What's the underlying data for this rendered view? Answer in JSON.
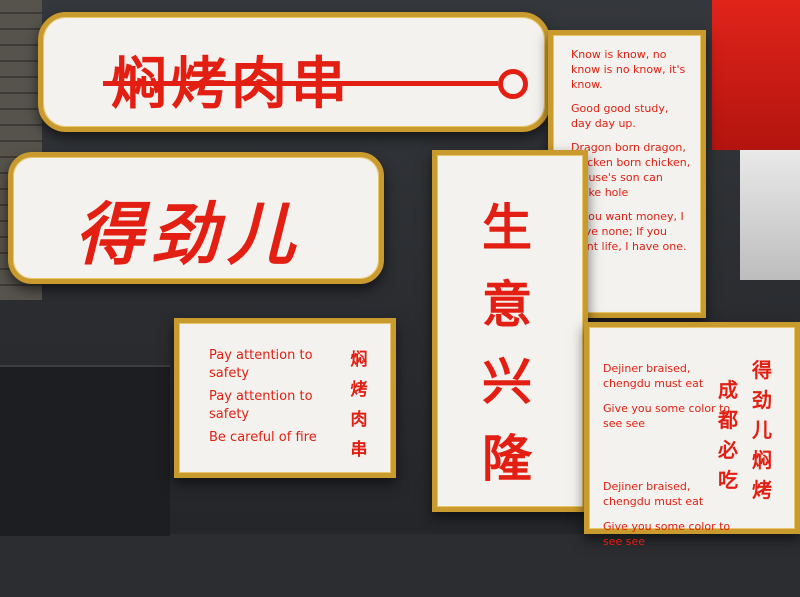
{
  "signs": {
    "top": {
      "text": "焖烤肉串"
    },
    "dejin": {
      "text": "得劲儿"
    },
    "proverbs": {
      "lines": [
        "Know is know, no know is no know, it's know.",
        "Good good study, day day up.",
        "Dragon born dragon, chicken born chicken, mouse's son can make hole",
        "If you want money, I have none; If you want life, I have one."
      ]
    },
    "business": {
      "text": "生意兴隆"
    },
    "safety": {
      "lines": [
        "Pay attention to safety",
        "Pay attention to safety",
        "Be careful of fire"
      ],
      "vertical": "焖烤肉串"
    },
    "chengdu": {
      "group1": [
        "Dejiner braised, chengdu must eat",
        "Give you some color to see see"
      ],
      "group2": [
        "Dejiner braised, chengdu must eat",
        "Give you some color to see see"
      ],
      "vertical1": "成都必吃",
      "vertical2": "得劲儿焖烤"
    }
  },
  "colors": {
    "sign_red": "#e21f12",
    "frame_gold": "#c99a2e",
    "sign_white": "#f4f2ee",
    "wall": "#2b2d31"
  }
}
